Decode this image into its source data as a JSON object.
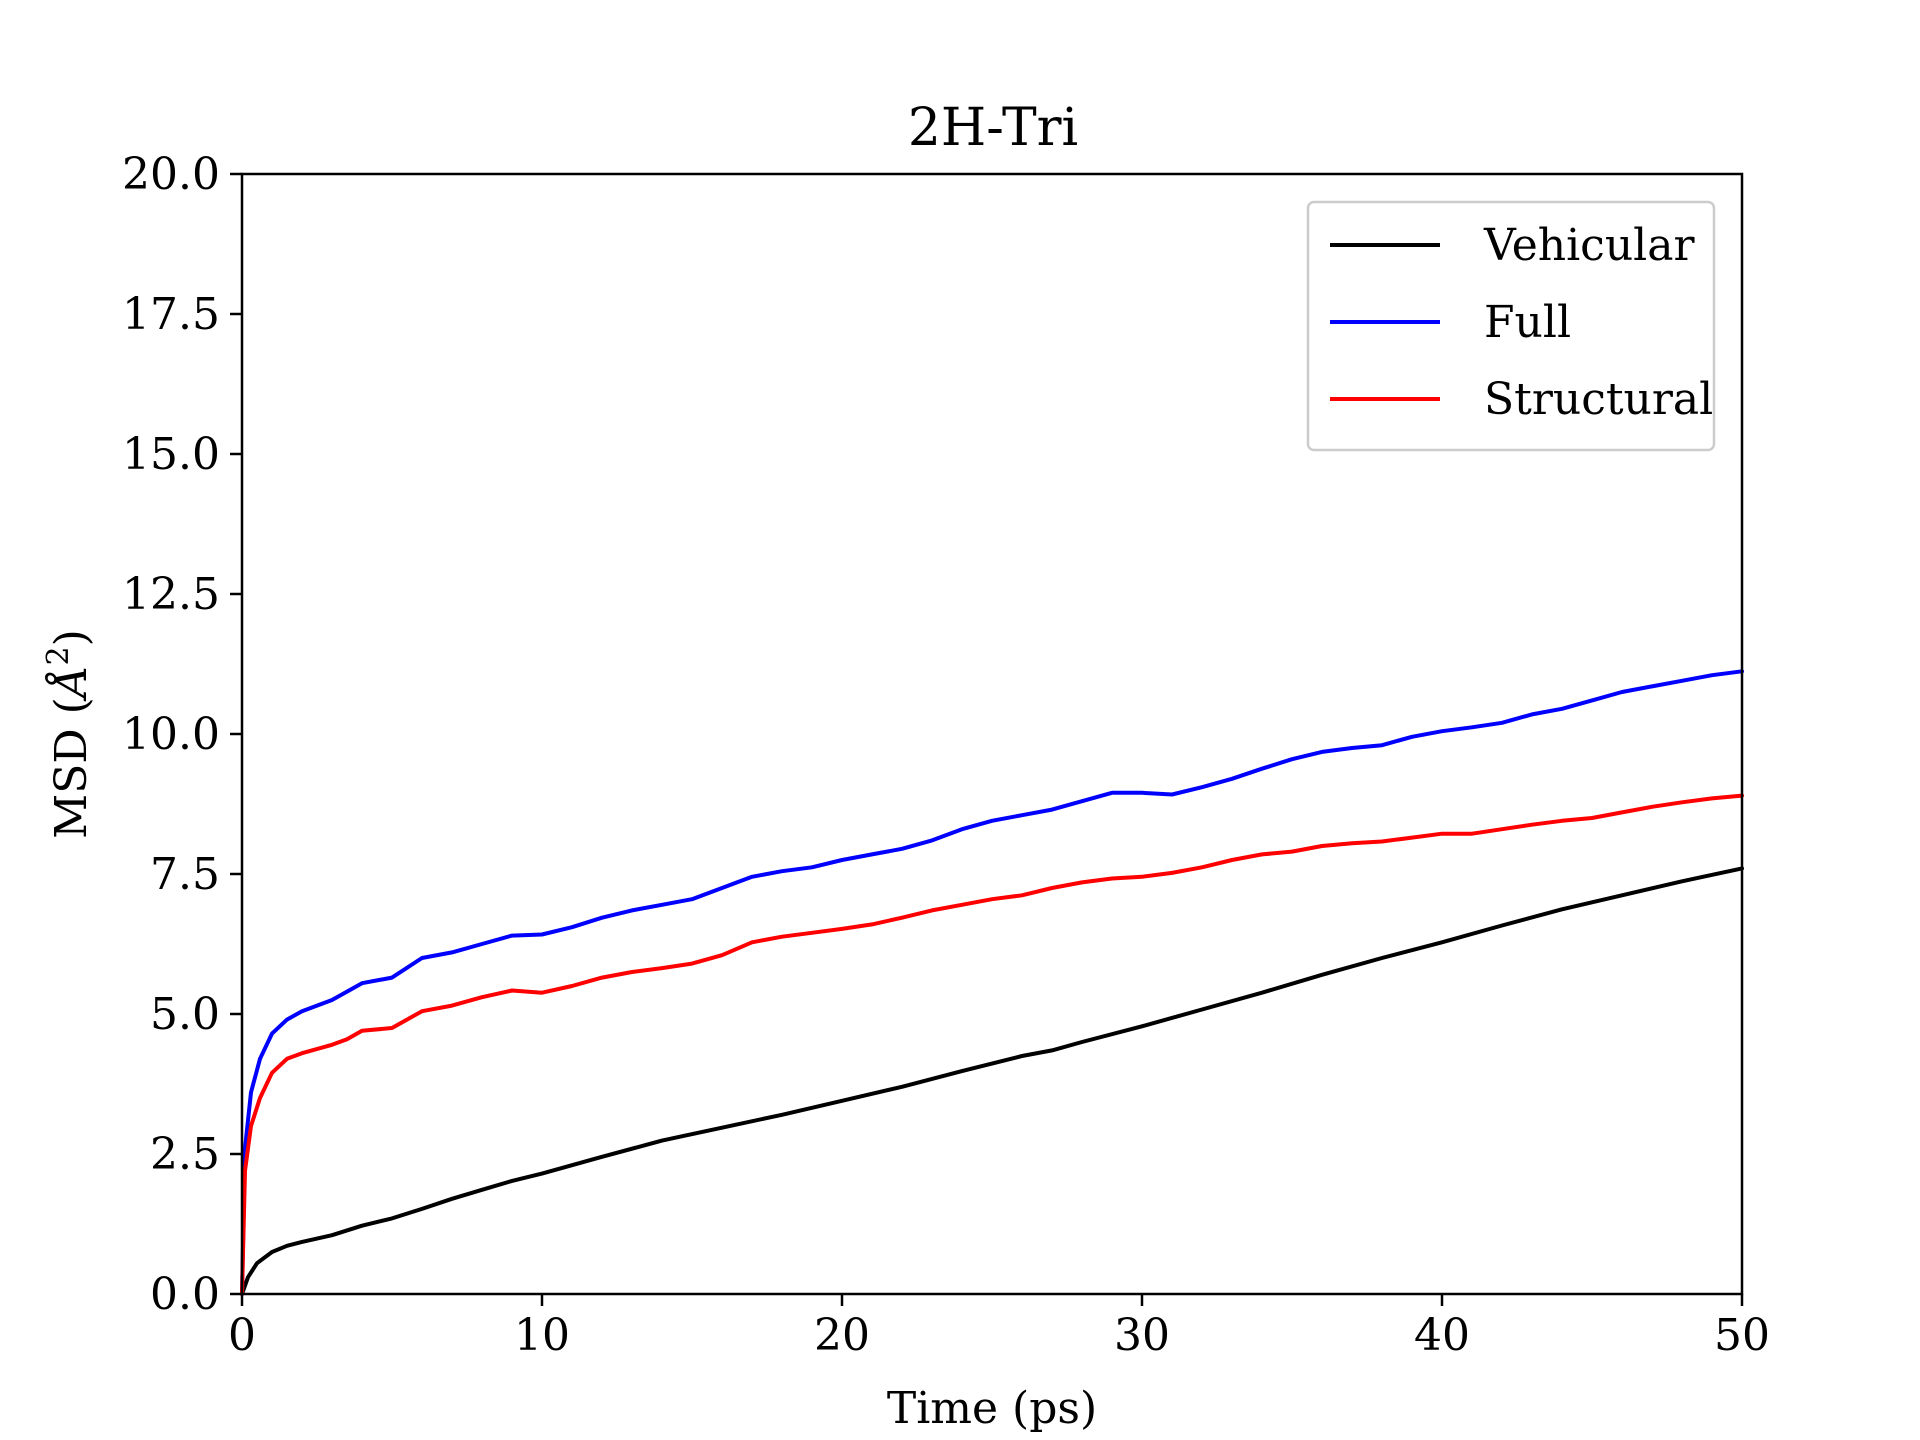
{
  "chart_data": {
    "type": "line",
    "title": "2H-Tri",
    "xlabel": "Time (ps)",
    "ylabel": "MSD (Å²)",
    "ylabel_parts": {
      "prefix": "MSD (",
      "symbol": "Å",
      "superscript": "2",
      "suffix": ")"
    },
    "xlim": [
      0,
      50
    ],
    "ylim": [
      0,
      20
    ],
    "xticks": [
      0,
      10,
      20,
      30,
      40,
      50
    ],
    "xtick_labels": [
      "0",
      "10",
      "20",
      "30",
      "40",
      "50"
    ],
    "yticks": [
      0,
      2.5,
      5,
      7.5,
      10,
      12.5,
      15,
      17.5,
      20
    ],
    "ytick_labels": [
      "0.0",
      "2.5",
      "5.0",
      "7.5",
      "10.0",
      "12.5",
      "15.0",
      "17.5",
      "20.0"
    ],
    "grid": false,
    "legend_position": "top-right",
    "series": [
      {
        "name": "Vehicular",
        "color": "#000000",
        "x": [
          0,
          0.2,
          0.5,
          1,
          1.5,
          2,
          3,
          4,
          5,
          6,
          7,
          8,
          9,
          10,
          12,
          14,
          16,
          18,
          20,
          22,
          24,
          26,
          27,
          28,
          30,
          32,
          34,
          36,
          38,
          40,
          42,
          44,
          46,
          48,
          50
        ],
        "y": [
          0,
          0.3,
          0.55,
          0.75,
          0.86,
          0.93,
          1.05,
          1.22,
          1.35,
          1.52,
          1.7,
          1.86,
          2.02,
          2.15,
          2.45,
          2.74,
          2.97,
          3.2,
          3.45,
          3.7,
          3.98,
          4.25,
          4.35,
          4.5,
          4.78,
          5.08,
          5.38,
          5.7,
          6.0,
          6.28,
          6.58,
          6.87,
          7.12,
          7.37,
          7.6
        ]
      },
      {
        "name": "Full",
        "color": "#0000ff",
        "x": [
          0,
          0.1,
          0.3,
          0.6,
          1,
          1.5,
          2,
          3,
          3.5,
          4,
          5,
          6,
          7,
          8,
          9,
          10,
          11,
          12,
          13,
          14,
          15,
          16,
          17,
          18,
          19,
          20,
          21,
          22,
          23,
          24,
          25,
          26,
          27,
          28,
          29,
          30,
          31,
          32,
          33,
          34,
          35,
          36,
          37,
          38,
          39,
          40,
          41,
          42,
          43,
          44,
          45,
          46,
          47,
          48,
          49,
          50
        ],
        "y": [
          0,
          2.6,
          3.6,
          4.2,
          4.65,
          4.9,
          5.05,
          5.25,
          5.4,
          5.55,
          5.65,
          6.0,
          6.1,
          6.25,
          6.4,
          6.42,
          6.55,
          6.72,
          6.85,
          6.95,
          7.05,
          7.25,
          7.45,
          7.55,
          7.62,
          7.75,
          7.85,
          7.95,
          8.1,
          8.3,
          8.45,
          8.55,
          8.65,
          8.8,
          8.95,
          8.95,
          8.92,
          9.05,
          9.2,
          9.38,
          9.55,
          9.68,
          9.75,
          9.8,
          9.95,
          10.05,
          10.12,
          10.2,
          10.35,
          10.45,
          10.6,
          10.75,
          10.85,
          10.95,
          11.05,
          11.12
        ]
      },
      {
        "name": "Structural",
        "color": "#ff0000",
        "x": [
          0,
          0.1,
          0.3,
          0.6,
          1,
          1.5,
          2,
          3,
          3.5,
          4,
          5,
          6,
          7,
          8,
          9,
          10,
          11,
          12,
          13,
          14,
          15,
          16,
          17,
          18,
          19,
          20,
          21,
          22,
          23,
          24,
          25,
          26,
          27,
          28,
          29,
          30,
          31,
          32,
          33,
          34,
          35,
          36,
          37,
          38,
          39,
          40,
          41,
          42,
          43,
          44,
          45,
          46,
          47,
          48,
          49,
          50
        ],
        "y": [
          0,
          2.2,
          3.0,
          3.5,
          3.95,
          4.2,
          4.3,
          4.45,
          4.55,
          4.7,
          4.75,
          5.05,
          5.15,
          5.3,
          5.42,
          5.38,
          5.5,
          5.65,
          5.75,
          5.82,
          5.9,
          6.05,
          6.28,
          6.38,
          6.45,
          6.52,
          6.6,
          6.72,
          6.85,
          6.95,
          7.05,
          7.12,
          7.25,
          7.35,
          7.42,
          7.45,
          7.52,
          7.62,
          7.75,
          7.85,
          7.9,
          8.0,
          8.05,
          8.08,
          8.15,
          8.22,
          8.22,
          8.3,
          8.38,
          8.45,
          8.5,
          8.6,
          8.7,
          8.78,
          8.85,
          8.9
        ]
      }
    ]
  }
}
